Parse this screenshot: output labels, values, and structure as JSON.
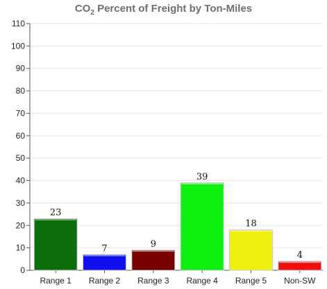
{
  "chart_data": {
    "type": "bar",
    "title": {
      "prefix": "CO",
      "sub": "2",
      "suffix": " Percent of Freight by Ton-Miles"
    },
    "xlabel": "",
    "ylabel": "",
    "ylim": [
      0,
      110
    ],
    "yticks": [
      0,
      10,
      20,
      30,
      40,
      50,
      60,
      70,
      80,
      90,
      100,
      110
    ],
    "grid": true,
    "categories": [
      "Range 1",
      "Range 2",
      "Range 3",
      "Range 4",
      "Range 5",
      "Non-SW"
    ],
    "values": [
      23,
      7,
      9,
      39,
      18,
      4
    ],
    "colors": [
      "#0b6e0b",
      "#1010ee",
      "#7a0000",
      "#10f010",
      "#f0f010",
      "#ee1010"
    ]
  }
}
